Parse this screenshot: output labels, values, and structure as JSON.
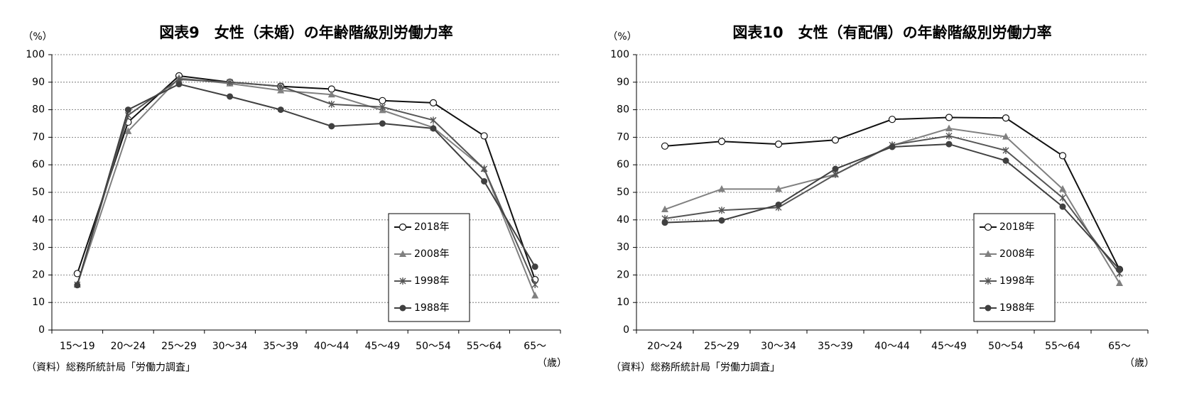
{
  "chart_data": [
    {
      "type": "line",
      "title": "図表9　女性（未婚）の年齢階級別労働力率",
      "y_unit_label": "（%）",
      "x_unit_label": "（歳）",
      "source": "（資料）総務所統計局「労働力調査」",
      "categories": [
        "15〜19",
        "20〜24",
        "25〜29",
        "30〜34",
        "35〜39",
        "40〜44",
        "45〜49",
        "50〜54",
        "55〜64",
        "65〜"
      ],
      "series": [
        {
          "name": "2018年",
          "color": "#111111",
          "marker": "circle-open",
          "values": [
            20.5,
            75.5,
            92.3,
            90.0,
            88.5,
            87.5,
            83.3,
            82.5,
            70.5,
            18.3
          ]
        },
        {
          "name": "2008年",
          "color": "#808080",
          "marker": "triangle",
          "values": [
            16.5,
            72.2,
            91.5,
            89.5,
            87.0,
            85.5,
            79.8,
            73.5,
            58.5,
            12.5
          ]
        },
        {
          "name": "1998年",
          "color": "#555555",
          "marker": "x",
          "values": [
            16.5,
            78.0,
            91.0,
            90.0,
            88.5,
            82.0,
            81.0,
            76.2,
            58.5,
            16.5
          ]
        },
        {
          "name": "1988年",
          "color": "#404040",
          "marker": "circle",
          "values": [
            16.3,
            80.0,
            89.3,
            84.8,
            80.0,
            74.0,
            75.0,
            73.2,
            54.0,
            23.0
          ]
        }
      ],
      "ylim": [
        0,
        100
      ],
      "yticks": [
        0,
        10,
        20,
        30,
        40,
        50,
        60,
        70,
        80,
        90,
        100
      ],
      "grid": true,
      "legend": "lower right"
    },
    {
      "type": "line",
      "title": "図表10　女性（有配偶）の年齢階級別労働力率",
      "y_unit_label": "（%）",
      "x_unit_label": "（歳）",
      "source": "（資料）総務所統計局「労働力調査」",
      "categories": [
        "20〜24",
        "25〜29",
        "30〜34",
        "35〜39",
        "40〜44",
        "45〜49",
        "50〜54",
        "55〜64",
        "65〜"
      ],
      "series": [
        {
          "name": "2018年",
          "color": "#111111",
          "marker": "circle-open",
          "values": [
            66.8,
            68.5,
            67.5,
            69.0,
            76.5,
            77.2,
            77.0,
            63.3,
            22.0
          ]
        },
        {
          "name": "2008年",
          "color": "#808080",
          "marker": "triangle",
          "values": [
            43.8,
            51.2,
            51.2,
            56.5,
            67.0,
            73.2,
            70.2,
            51.2,
            17.0
          ]
        },
        {
          "name": "1998年",
          "color": "#555555",
          "marker": "x",
          "values": [
            40.5,
            43.5,
            44.5,
            56.5,
            67.2,
            70.5,
            65.2,
            48.0,
            20.5
          ]
        },
        {
          "name": "1988年",
          "color": "#404040",
          "marker": "circle",
          "values": [
            39.0,
            39.8,
            45.5,
            58.5,
            66.5,
            67.5,
            61.5,
            44.8,
            22.0
          ]
        }
      ],
      "ylim": [
        0,
        100
      ],
      "yticks": [
        0,
        10,
        20,
        30,
        40,
        50,
        60,
        70,
        80,
        90,
        100
      ],
      "grid": true,
      "legend": "lower right"
    }
  ]
}
